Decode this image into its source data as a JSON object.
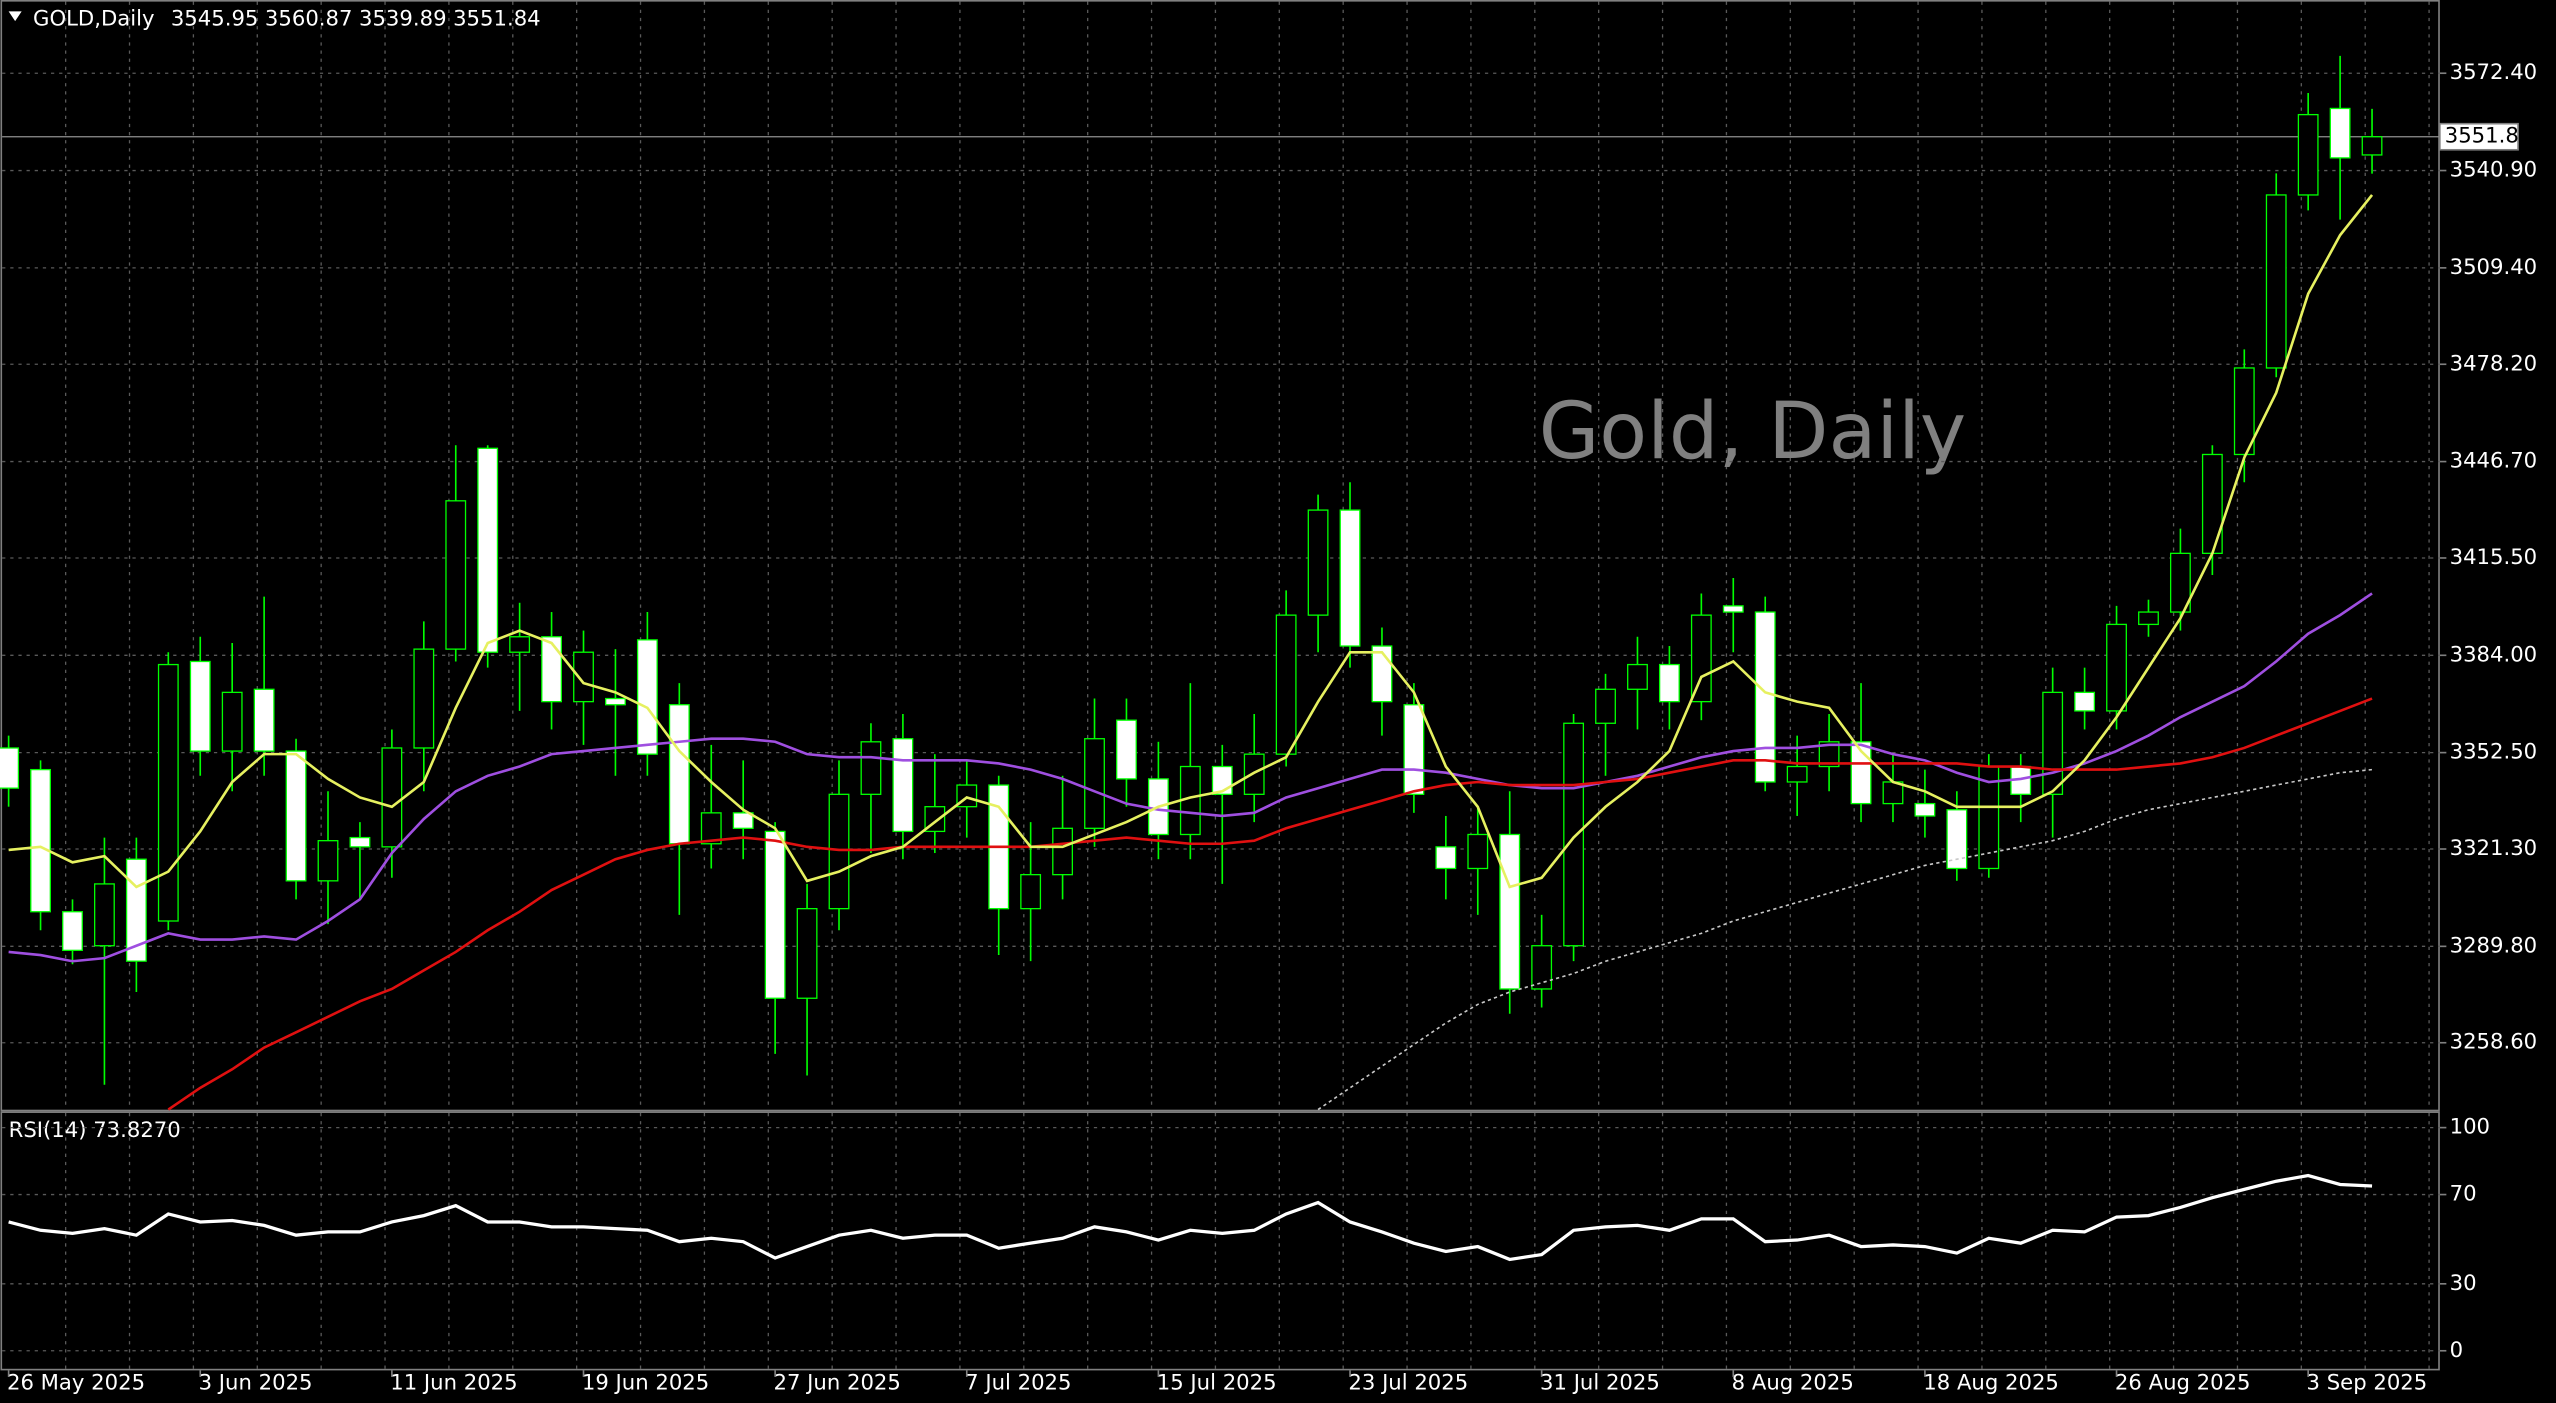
{
  "chart_data": [
    {
      "type": "candlestick",
      "symbol": "GOLD,Daily",
      "ohlc_header": [
        3545.95,
        3560.87,
        3539.89,
        3551.84
      ],
      "watermark": "Gold, Daily",
      "last_price": 3551.84,
      "categories": [
        "26 May 2025",
        null,
        null,
        null,
        null,
        null,
        "3 Jun 2025",
        null,
        null,
        null,
        null,
        null,
        "11 Jun 2025",
        null,
        null,
        null,
        null,
        null,
        "19 Jun 2025",
        null,
        null,
        null,
        null,
        null,
        "27 Jun 2025",
        null,
        null,
        null,
        null,
        null,
        "7 Jul 2025",
        null,
        null,
        null,
        null,
        null,
        "15 Jul 2025",
        null,
        null,
        null,
        null,
        null,
        "23 Jul 2025",
        null,
        null,
        null,
        null,
        null,
        "31 Jul 2025",
        null,
        null,
        null,
        null,
        null,
        "8 Aug 2025",
        null,
        null,
        null,
        null,
        null,
        "18 Aug 2025",
        null,
        null,
        null,
        null,
        null,
        "26 Aug 2025",
        null,
        null,
        null,
        null,
        null,
        "3 Sep 2025",
        null,
        null
      ],
      "open": [
        3354,
        3347,
        3301,
        3290,
        3318,
        3298,
        3382,
        3353,
        3373,
        3353,
        3311,
        3325,
        3322,
        3354,
        3386,
        3451,
        3385,
        3390,
        3369,
        3370,
        3389,
        3368,
        3323,
        3333,
        3327,
        3273,
        3302,
        3339,
        3357,
        3327,
        3335,
        3342,
        3302,
        3313,
        3328,
        3363,
        3344,
        3326,
        3348,
        3339,
        3352,
        3397,
        3431,
        3387,
        3368,
        3322,
        3315,
        3326,
        3276,
        3290,
        3362,
        3373,
        3381,
        3369,
        3400,
        3398,
        3343,
        3348,
        3356,
        3336,
        3336,
        3334,
        3315,
        3348,
        3339,
        3372,
        3366,
        3394,
        3398,
        3417,
        3449,
        3477,
        3533,
        3561,
        3545.95
      ],
      "high": [
        3358,
        3350,
        3305,
        3325,
        3325,
        3385,
        3390,
        3388,
        3403,
        3357,
        3340,
        3330,
        3360,
        3395,
        3452,
        3452,
        3401,
        3398,
        3392,
        3386,
        3398,
        3375,
        3355,
        3350,
        3330,
        3310,
        3350,
        3362,
        3365,
        3352,
        3350,
        3345,
        3330,
        3345,
        3370,
        3370,
        3356,
        3375,
        3355,
        3365,
        3405,
        3436,
        3440,
        3393,
        3375,
        3332,
        3335,
        3340,
        3300,
        3365,
        3378,
        3390,
        3387,
        3404,
        3409,
        3403,
        3358,
        3365,
        3375,
        3352,
        3347,
        3340,
        3352,
        3352,
        3380,
        3380,
        3400,
        3402,
        3425,
        3452,
        3483,
        3540,
        3566,
        3578,
        3560.87
      ],
      "low": [
        3335,
        3295,
        3284,
        3245,
        3275,
        3295,
        3345,
        3340,
        3345,
        3305,
        3297,
        3305,
        3312,
        3340,
        3382,
        3380,
        3366,
        3360,
        3355,
        3345,
        3345,
        3300,
        3315,
        3318,
        3255,
        3248,
        3295,
        3320,
        3318,
        3320,
        3325,
        3287,
        3285,
        3305,
        3322,
        3335,
        3318,
        3318,
        3310,
        3330,
        3348,
        3385,
        3380,
        3358,
        3333,
        3305,
        3300,
        3268,
        3270,
        3285,
        3345,
        3360,
        3360,
        3363,
        3385,
        3340,
        3332,
        3340,
        3330,
        3330,
        3325,
        3311,
        3312,
        3330,
        3325,
        3360,
        3360,
        3390,
        3392,
        3410,
        3440,
        3474,
        3528,
        3525,
        3539.89
      ],
      "close": [
        3341,
        3301,
        3288.5,
        3310,
        3285,
        3381,
        3353,
        3372,
        3353,
        3311,
        3324,
        3322,
        3354,
        3386,
        3434,
        3385,
        3390,
        3369,
        3385,
        3368,
        3352,
        3323,
        3333,
        3328,
        3273,
        3302,
        3339,
        3356,
        3327,
        3335,
        3342,
        3302,
        3313,
        3328,
        3357,
        3344,
        3326,
        3348,
        3339,
        3352,
        3397,
        3431,
        3387,
        3369,
        3339,
        3315,
        3326,
        3276,
        3290,
        3362,
        3373,
        3381,
        3369,
        3397,
        3398,
        3343,
        3348,
        3356,
        3336,
        3343,
        3332,
        3315,
        3348,
        3339,
        3372,
        3366,
        3394,
        3398,
        3417,
        3449,
        3477,
        3533,
        3559,
        3545,
        3551.84
      ],
      "up_color": "#000000",
      "down_color": "#ffffff",
      "wick_color": "#00ff00",
      "overlays": [
        {
          "color": "#9f4fe0",
          "dashed": false,
          "values": [
            3288,
            3287,
            3285,
            3286,
            3290,
            3294,
            3292,
            3292,
            3293,
            3292,
            3298,
            3305,
            3320,
            3331,
            3340,
            3345,
            3348,
            3352,
            3353,
            3354,
            3355,
            3356,
            3357,
            3357,
            3356,
            3352,
            3351,
            3351,
            3350,
            3350,
            3350,
            3349,
            3347,
            3344,
            3340,
            3336,
            3334,
            3333,
            3332,
            3333,
            3338,
            3341,
            3344,
            3347,
            3347,
            3346,
            3344,
            3342,
            3341,
            3341,
            3343,
            3345,
            3348,
            3351,
            3353,
            3354,
            3354,
            3355,
            3355,
            3352,
            3350,
            3346,
            3343,
            3344,
            3346,
            3349,
            3353,
            3358,
            3364,
            3369,
            3374,
            3382,
            3391,
            3397,
            3404
          ]
        },
        {
          "color": "#e01010",
          "dashed": false,
          "values": [
            null,
            null,
            null,
            null,
            null,
            3237,
            3244,
            3250,
            3257,
            3262,
            3267,
            3272,
            3276,
            3282,
            3288,
            3295,
            3301,
            3308,
            3313,
            3318,
            3321,
            3323,
            3324,
            3325,
            3324,
            3322,
            3321,
            3321,
            3322,
            3322,
            3322,
            3322,
            3322,
            3323,
            3324,
            3325,
            3324,
            3323,
            3323,
            3324,
            3328,
            3331,
            3334,
            3337,
            3340,
            3342,
            3343,
            3342,
            3342,
            3342,
            3343,
            3344,
            3346,
            3348,
            3350,
            3350,
            3349,
            3349,
            3349,
            3349,
            3349,
            3349,
            3348,
            3348,
            3347,
            3347,
            3347,
            3348,
            3349,
            3351,
            3354,
            3358,
            3362,
            3366,
            3370
          ]
        },
        {
          "color": "#c8c8c8",
          "dashed": true,
          "values": [
            null,
            null,
            null,
            null,
            null,
            null,
            null,
            null,
            null,
            null,
            null,
            null,
            null,
            null,
            null,
            null,
            null,
            null,
            null,
            null,
            null,
            null,
            null,
            null,
            null,
            null,
            null,
            null,
            null,
            null,
            null,
            null,
            null,
            null,
            null,
            null,
            null,
            null,
            null,
            null,
            null,
            3237,
            3244,
            3251,
            3258,
            3265,
            3271,
            3275,
            3278,
            3281,
            3285,
            3288,
            3291,
            3294,
            3298,
            3301,
            3304,
            3307,
            3310,
            3313,
            3316,
            3318,
            3320,
            3322,
            3324,
            3327,
            3331,
            3334,
            3336,
            3338,
            3340,
            3342,
            3344,
            3346,
            3347
          ]
        },
        {
          "color": "#e6f060",
          "dashed": false,
          "values": [
            3321,
            3322,
            3317,
            3319,
            3309,
            3314,
            3327,
            3343,
            3352,
            3352,
            3344,
            3338,
            3335,
            3343,
            3367,
            3388,
            3392,
            3388,
            3375,
            3372,
            3367,
            3353,
            3343,
            3334,
            3328,
            3311,
            3314,
            3319,
            3322,
            3330,
            3338,
            3335,
            3322,
            3322,
            3326,
            3330,
            3335,
            3338,
            3340,
            3346,
            3351,
            3369,
            3385,
            3385,
            3372,
            3348,
            3335,
            3309,
            3312,
            3325,
            3335,
            3343,
            3353,
            3377,
            3382,
            3372,
            3369,
            3367,
            3353,
            3343,
            3340,
            3335,
            3335,
            3335,
            3340,
            3350,
            3364,
            3380,
            3396,
            3417,
            3448,
            3469,
            3501,
            3520,
            3533
          ]
        }
      ],
      "ylim": [
        3236.4,
        3596.1
      ],
      "yticks": [
        {
          "value": 3572.4,
          "label": "3572.40"
        },
        {
          "value": 3540.9,
          "label": "3540.90"
        },
        {
          "value": 3509.4,
          "label": "3509.40"
        },
        {
          "value": 3478.2,
          "label": "3478.20"
        },
        {
          "value": 3446.7,
          "label": "3446.70"
        },
        {
          "value": 3415.5,
          "label": "3415.50"
        },
        {
          "value": 3384,
          "label": "3384.00"
        },
        {
          "value": 3352.5,
          "label": "3352.50"
        },
        {
          "value": 3321.3,
          "label": "3321.30"
        },
        {
          "value": 3289.8,
          "label": "3289.80"
        },
        {
          "value": 3258.6,
          "label": "3258.60"
        }
      ],
      "grid": true
    },
    {
      "type": "line",
      "title": "RSI(14) 73.8270",
      "color": "#ffffff",
      "values": [
        57.7,
        54,
        52.6,
        54.7,
        51.8,
        61.3,
        57.7,
        58.4,
        56.2,
        51.8,
        53.3,
        53.3,
        57.7,
        60.6,
        65,
        57.7,
        57.7,
        55.5,
        55.5,
        54.7,
        54,
        48.9,
        50.4,
        48.9,
        41.6,
        46.7,
        51.8,
        54,
        50.4,
        51.8,
        51.8,
        46,
        48.2,
        50.4,
        55.5,
        53.3,
        49.6,
        54,
        52.6,
        54,
        61.3,
        66.4,
        57.7,
        53.3,
        48.2,
        44.5,
        46.7,
        40.9,
        43.1,
        54,
        55.5,
        56.2,
        54,
        59.1,
        59.1,
        48.9,
        49.6,
        51.8,
        46.7,
        47.4,
        46.7,
        43.8,
        50.4,
        48.2,
        54,
        53.3,
        59.9,
        60.6,
        64.2,
        68.6,
        72.3,
        76,
        78.5,
        74.5,
        73.827
      ],
      "ylim": [
        -8.8,
        107.3
      ],
      "yticks": [
        100,
        70,
        30,
        0
      ],
      "grid": true
    }
  ]
}
